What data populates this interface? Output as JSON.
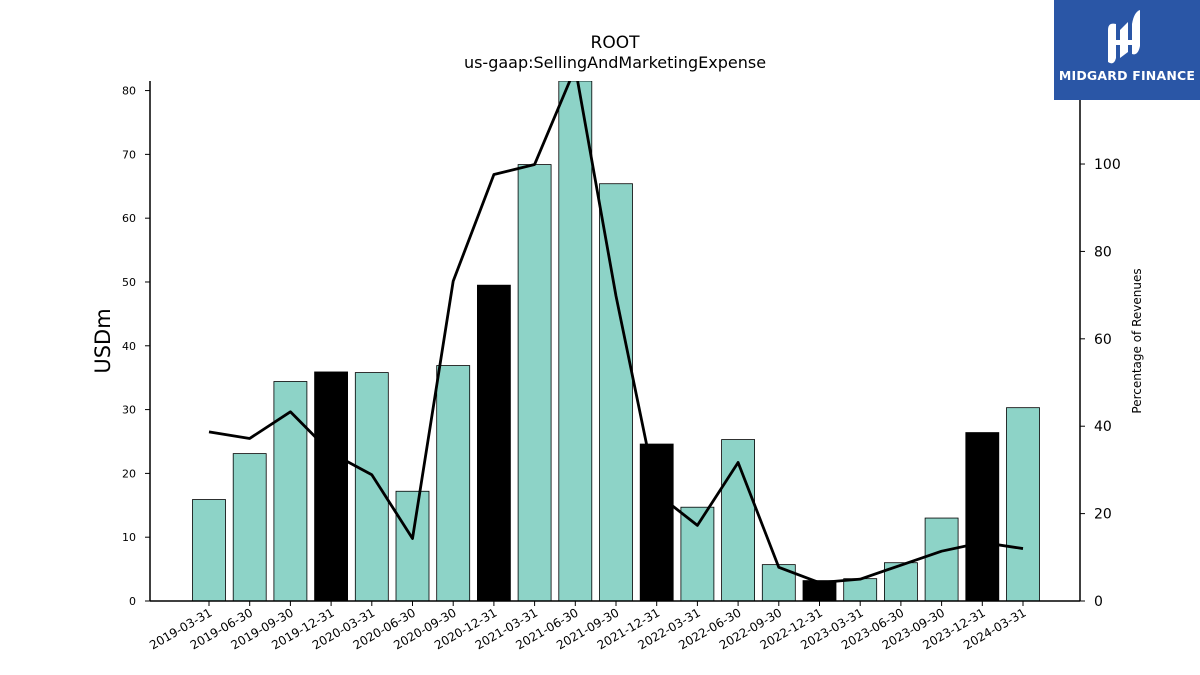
{
  "chart_data": {
    "type": "bar",
    "title": "ROOT",
    "subtitle": "us-gaap:SellingAndMarketingExpense",
    "ylabel": "USDm",
    "y2label": "Percentage of Revenues",
    "ylim": [
      0,
      81.5
    ],
    "y2lim": [
      0,
      119
    ],
    "yticks": [
      0,
      10,
      20,
      30,
      40,
      50,
      60,
      70,
      80
    ],
    "y2ticks": [
      0,
      20,
      40,
      60,
      80,
      100
    ],
    "categories": [
      "2019-03-31",
      "2019-06-30",
      "2019-09-30",
      "2019-12-31",
      "2020-03-31",
      "2020-06-30",
      "2020-09-30",
      "2020-12-31",
      "2021-03-31",
      "2021-06-30",
      "2021-09-30",
      "2021-12-31",
      "2022-03-31",
      "2022-06-30",
      "2022-09-30",
      "2022-12-31",
      "2023-03-31",
      "2023-06-30",
      "2023-09-30",
      "2023-12-31",
      "2024-03-31"
    ],
    "series": [
      {
        "kind": "bar",
        "values": [
          15.9,
          23.1,
          34.4,
          35.9,
          35.8,
          17.2,
          36.9,
          49.5,
          68.4,
          81.5,
          65.4,
          24.6,
          14.7,
          25.3,
          5.7,
          3.2,
          3.5,
          6.0,
          13.0,
          26.4,
          30.3
        ],
        "highlight": [
          false,
          false,
          false,
          true,
          false,
          false,
          false,
          true,
          false,
          false,
          false,
          true,
          false,
          false,
          false,
          true,
          false,
          false,
          false,
          true,
          false
        ],
        "color": "#8dd3c7",
        "highlight_color": "#000000"
      },
      {
        "kind": "line",
        "axis": "right",
        "values": [
          38.7,
          37.2,
          43.3,
          33.9,
          28.9,
          14.3,
          73.2,
          97.6,
          99.9,
          122.0,
          69.8,
          24.6,
          17.3,
          31.7,
          7.7,
          4.2,
          5.0,
          8.2,
          11.4,
          13.4,
          12.0
        ],
        "color": "#000000"
      }
    ]
  },
  "logo": {
    "text": "MIDGARD FINANCE",
    "color": "#2a56a6"
  }
}
